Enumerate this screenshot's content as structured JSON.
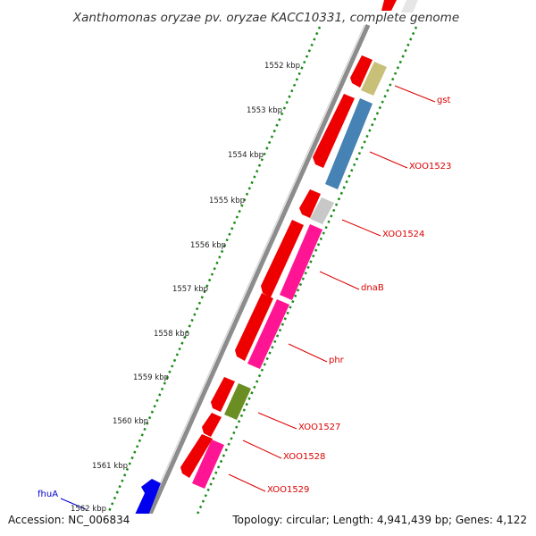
{
  "title": "Xanthomonas oryzae pv. oryzae KACC10331, complete genome",
  "footer": {
    "accession": "Accession: NC_006834",
    "topology": "Topology: circular; Length: 4,941,439 bp; Genes: 4,122"
  },
  "colors": {
    "backbone": "#8c8c8c",
    "ticks": "#1a8a1a",
    "forward_gene": "#ee0000",
    "gene_label": "#dd0000",
    "highlight_gene": "#0000ee"
  },
  "ticks": [
    "1552 kbp",
    "1553 kbp",
    "1554 kbp",
    "1555 kbp",
    "1556 kbp",
    "1557 kbp",
    "1558 kbp",
    "1559 kbp",
    "1560 kbp",
    "1561 kbp",
    "1562 kbp"
  ],
  "genes": [
    {
      "label": "gst",
      "color": "#c8c078"
    },
    {
      "label": "XOO1523",
      "color": "#4682b4"
    },
    {
      "label": "XOO1524",
      "color": "#c8c8c8"
    },
    {
      "label": "dnaB",
      "color": "#ff1493"
    },
    {
      "label": "phr",
      "color": "#ff1493"
    },
    {
      "label": "XOO1527",
      "color": "#6b8e23"
    },
    {
      "label": "XOO1528",
      "color": "#ee0000"
    },
    {
      "label": "XOO1529",
      "color": "#ff1493"
    }
  ],
  "highlight_gene": {
    "label": "fhuA",
    "color": "#0000ee"
  }
}
